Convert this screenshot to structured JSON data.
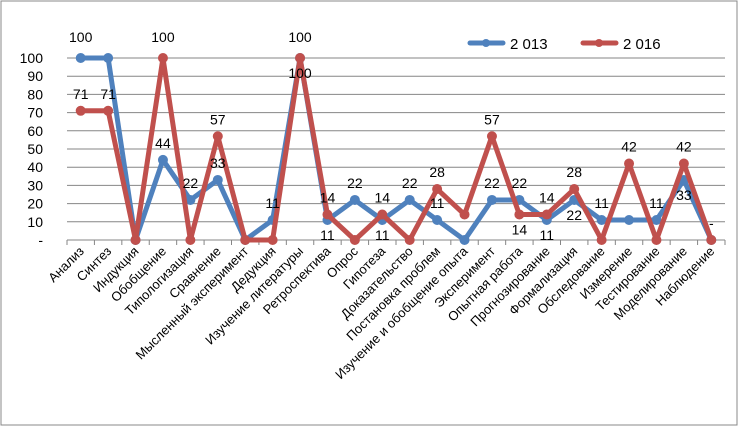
{
  "chart_data": {
    "type": "line",
    "title": "",
    "xlabel": "",
    "ylabel": "",
    "ylim": [
      0,
      100
    ],
    "yticks": [
      "-",
      "10",
      "20",
      "30",
      "40",
      "50",
      "60",
      "70",
      "80",
      "90",
      "100"
    ],
    "grid": true,
    "legend_position": "top-right",
    "categories": [
      "Анализ",
      "Синтез",
      "Индукция",
      "Обобщение",
      "Типологизация",
      "Сравнение",
      "Мысленный эксперимент",
      "Дедукция",
      "Изучение литературы",
      "Ретроспектива",
      "Опрос",
      "Гипотеза",
      "Доказательство",
      "Постановка проблем",
      "Изучение и обобщение опыта",
      "Эксперимент",
      "Опытная работа",
      "Прогнозирование",
      "Формализация",
      "Обследование",
      "Измерение",
      "Тестирование",
      "Моделирование",
      "Наблюдение"
    ],
    "series": [
      {
        "name": "2 013",
        "color": "#4F81BD",
        "values": [
          100,
          100,
          0,
          44,
          22,
          33,
          0,
          11,
          100,
          11,
          22,
          11,
          22,
          11,
          0,
          22,
          22,
          11,
          22,
          11,
          11,
          11,
          33,
          0
        ],
        "labels": [
          "100",
          null,
          null,
          "44",
          "22",
          "33",
          null,
          "11",
          "100",
          "11",
          "22",
          "11",
          "22",
          "11",
          null,
          "22",
          "22",
          "11",
          "22",
          "11",
          null,
          "11",
          "33",
          "-"
        ]
      },
      {
        "name": "2 016",
        "color": "#C0504D",
        "values": [
          71,
          71,
          0,
          100,
          0,
          57,
          0,
          0,
          100,
          14,
          0,
          14,
          0,
          28,
          14,
          57,
          14,
          14,
          28,
          0,
          42,
          0,
          42,
          0
        ],
        "labels": [
          "71",
          "71",
          null,
          "100",
          null,
          "57",
          null,
          null,
          "100",
          "14",
          null,
          "14",
          null,
          "28",
          null,
          "57",
          "14",
          "14",
          "28",
          null,
          "42",
          null,
          "42",
          null
        ]
      }
    ]
  }
}
